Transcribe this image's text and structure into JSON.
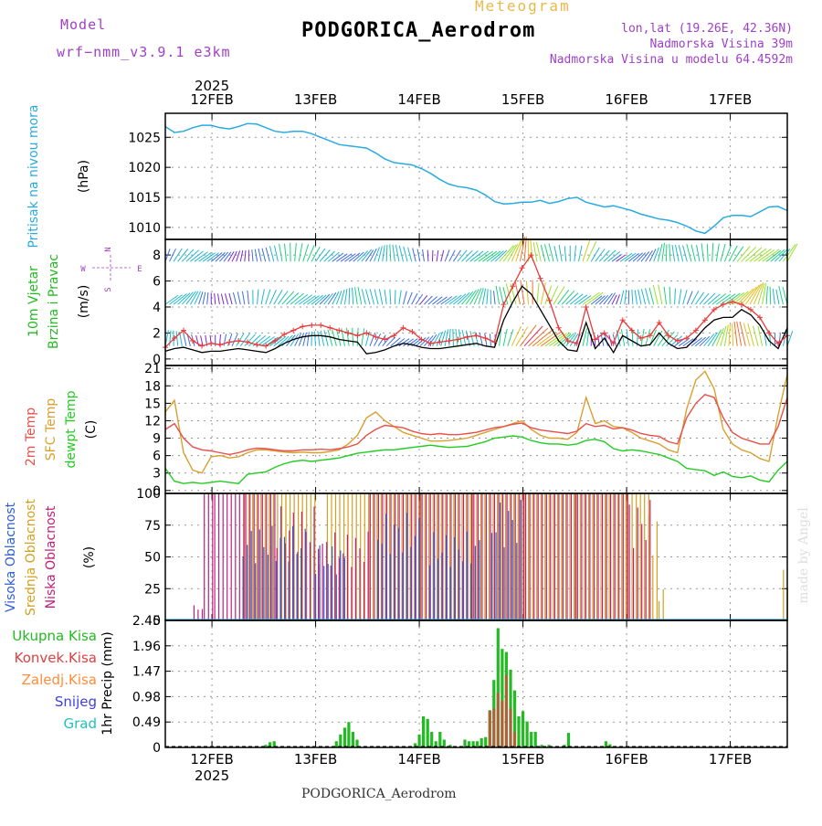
{
  "header": {
    "model_label": "Model",
    "model_name": "wrf−nmm_v3.9.1  e3km",
    "title": "PODGORICA_Aerodrom",
    "subtitle": "Meteogram",
    "lonlat": "lon,lat (19.26E, 42.36N)",
    "elevation": "Nadmorska Visina 39m",
    "model_elevation": "Nadmorska Visina u modelu 64.4592m"
  },
  "footer": {
    "station": "PODGORICA_Aerodrom",
    "watermark": "made by Angel"
  },
  "colors": {
    "pressure": "#29abe2",
    "gust": "#e83a3a",
    "wind_speed": "#000000",
    "temp2m": "#e8504a",
    "sfc_temp": "#d9a030",
    "dewpt": "#22cc22",
    "high_cloud": "#2f5fd0",
    "mid_cloud": "#d4a020",
    "low_cloud": "#c0207a",
    "total_precip": "#22bb22",
    "conv_precip": "#e04040",
    "frozen_precip": "#ff8c3a",
    "snow": "#4040dd",
    "graupel": "#20c0c0",
    "grid": "#999999"
  },
  "chart_data": {
    "type": "meteogram",
    "time_axis": {
      "year": "2025",
      "date_labels": [
        "12FEB",
        "13FEB",
        "14FEB",
        "15FEB",
        "16FEB",
        "17FEB"
      ],
      "start_day": 11.55,
      "end_day": 17.55
    },
    "panels": [
      {
        "id": "pressure",
        "type": "line",
        "ylabel": [
          "Pritisak na nivou mora",
          "(hPa)"
        ],
        "ylim": [
          1008,
          1029
        ],
        "yticks": [
          1010,
          1015,
          1020,
          1025
        ],
        "series": [
          {
            "name": "MSLP",
            "values": [
              1026.8,
              1025.8,
              1026.0,
              1026.6,
              1027.0,
              1027.0,
              1026.6,
              1026.4,
              1026.8,
              1027.3,
              1027.2,
              1026.6,
              1026.0,
              1025.8,
              1026.0,
              1026.0,
              1025.6,
              1025.0,
              1024.4,
              1023.8,
              1023.6,
              1023.4,
              1023.2,
              1022.4,
              1021.4,
              1020.8,
              1020.6,
              1020.4,
              1019.8,
              1019.0,
              1018.0,
              1017.2,
              1016.8,
              1016.6,
              1016.2,
              1015.4,
              1014.3,
              1013.9,
              1014.0,
              1014.2,
              1014.2,
              1014.5,
              1014.0,
              1014.3,
              1014.8,
              1015.0,
              1014.2,
              1013.8,
              1013.4,
              1013.6,
              1013.2,
              1012.8,
              1012.2,
              1011.8,
              1011.4,
              1011.2,
              1010.8,
              1010.2,
              1009.4,
              1009.0,
              1010.2,
              1011.6,
              1012.0,
              1012.0,
              1011.8,
              1012.6,
              1013.4,
              1013.5,
              1012.8
            ]
          }
        ]
      },
      {
        "id": "wind",
        "type": "line+barbs",
        "ylabel": [
          "10m Vjetar",
          "Brzina i Pravac",
          "(m/s)"
        ],
        "compass": {
          "n": "N",
          "s": "S",
          "w": "W",
          "e": "E"
        },
        "ylim": [
          -0.5,
          9.2
        ],
        "yticks": [
          0,
          2,
          4,
          6,
          8
        ],
        "barb_levels": [
          7.5,
          4.2,
          1.0
        ],
        "series": [
          {
            "name": "gust",
            "values": [
              0.9,
              1.6,
              2.2,
              1.4,
              1.0,
              1.2,
              1.1,
              1.3,
              1.4,
              1.3,
              1.1,
              1.0,
              1.4,
              1.9,
              2.2,
              2.5,
              2.6,
              2.6,
              2.4,
              2.2,
              2.0,
              1.8,
              2.0,
              1.7,
              1.5,
              1.8,
              2.4,
              2.1,
              1.5,
              1.2,
              1.3,
              1.4,
              1.5,
              1.7,
              1.8,
              1.6,
              1.3,
              4.2,
              5.6,
              7.0,
              8.0,
              6.2,
              4.5,
              2.4,
              1.4,
              1.2,
              4.0,
              1.5,
              2.0,
              1.2,
              3.0,
              2.2,
              1.6,
              1.8,
              2.8,
              1.8,
              1.4,
              1.6,
              2.2,
              3.0,
              3.8,
              4.2,
              4.4,
              4.2,
              3.8,
              3.2,
              2.0,
              1.2,
              1.8
            ]
          },
          {
            "name": "speed",
            "values": [
              0.6,
              0.8,
              0.9,
              0.7,
              0.5,
              0.6,
              0.6,
              0.7,
              0.8,
              0.7,
              0.6,
              0.5,
              0.8,
              1.2,
              1.5,
              1.7,
              1.8,
              1.8,
              1.7,
              1.5,
              1.4,
              1.3,
              0.4,
              0.5,
              0.7,
              1.0,
              1.2,
              1.1,
              0.9,
              0.8,
              0.8,
              0.9,
              1.0,
              1.1,
              1.2,
              1.0,
              0.9,
              3.0,
              4.4,
              5.6,
              5.0,
              3.8,
              2.6,
              1.4,
              0.7,
              0.6,
              2.8,
              0.8,
              1.6,
              0.5,
              1.8,
              1.4,
              1.0,
              1.1,
              2.0,
              1.2,
              0.8,
              0.9,
              1.6,
              2.4,
              3.0,
              3.2,
              3.2,
              3.8,
              3.4,
              2.6,
              1.4,
              0.8,
              2.4
            ]
          }
        ]
      },
      {
        "id": "temperature",
        "type": "line",
        "ylabel": [
          "2m Temp",
          "SFC Temp",
          "dewpt Temp",
          "(C)"
        ],
        "ylim": [
          -0.5,
          21.5
        ],
        "yticks": [
          0,
          3,
          6,
          9,
          12,
          15,
          18,
          21
        ],
        "series": [
          {
            "name": "2m Temp",
            "values": [
              10.5,
              11.5,
              9.0,
              7.5,
              7.0,
              6.8,
              6.5,
              6.2,
              6.5,
              7.0,
              7.3,
              7.2,
              7.0,
              6.8,
              6.8,
              7.0,
              7.0,
              7.1,
              7.0,
              7.2,
              7.5,
              8.0,
              9.5,
              10.5,
              11.2,
              11.0,
              10.8,
              10.2,
              9.8,
              9.6,
              9.8,
              9.6,
              9.6,
              9.8,
              10.0,
              10.4,
              10.8,
              11.0,
              11.4,
              11.6,
              10.8,
              10.4,
              10.2,
              10.0,
              9.8,
              10.2,
              11.5,
              11.0,
              11.2,
              10.6,
              10.8,
              10.4,
              9.8,
              9.5,
              9.3,
              8.4,
              8.0,
              12.5,
              15.0,
              16.5,
              16.0,
              12.5,
              10.0,
              9.0,
              8.5,
              8.0,
              8.0,
              11.0,
              16.0
            ]
          },
          {
            "name": "SFC Temp",
            "values": [
              13.5,
              15.5,
              6.5,
              3.5,
              3.0,
              5.8,
              6.0,
              5.6,
              5.8,
              6.5,
              7.0,
              7.0,
              6.8,
              6.6,
              6.5,
              6.6,
              6.5,
              6.5,
              6.7,
              7.0,
              8.0,
              9.5,
              12.5,
              13.5,
              12.0,
              11.0,
              10.0,
              9.5,
              9.0,
              8.5,
              8.5,
              8.6,
              8.8,
              9.0,
              9.5,
              10.0,
              10.5,
              11.0,
              11.5,
              12.0,
              10.5,
              9.5,
              9.0,
              9.0,
              8.8,
              10.0,
              16.0,
              11.5,
              12.0,
              11.0,
              10.8,
              10.0,
              9.0,
              8.5,
              8.0,
              7.0,
              6.5,
              14.0,
              19.0,
              20.5,
              17.5,
              10.5,
              8.0,
              7.0,
              6.5,
              5.5,
              5.0,
              13.0,
              20.0
            ]
          },
          {
            "name": "dewpt Temp",
            "values": [
              3.8,
              1.6,
              1.2,
              1.4,
              1.2,
              1.4,
              1.6,
              1.4,
              1.2,
              2.8,
              3.0,
              3.2,
              4.0,
              4.6,
              5.0,
              5.2,
              5.0,
              5.2,
              5.4,
              5.6,
              6.0,
              6.4,
              6.6,
              6.8,
              7.0,
              7.0,
              7.2,
              7.4,
              7.6,
              7.8,
              7.6,
              7.4,
              7.5,
              7.6,
              8.0,
              8.4,
              9.0,
              9.2,
              9.4,
              9.2,
              8.6,
              8.2,
              8.0,
              8.0,
              7.8,
              8.0,
              8.6,
              8.8,
              8.4,
              7.2,
              6.8,
              7.0,
              6.8,
              6.5,
              6.2,
              5.6,
              5.0,
              3.8,
              3.6,
              3.4,
              2.6,
              3.2,
              2.4,
              2.2,
              2.5,
              1.8,
              1.5,
              3.5,
              5.0
            ]
          }
        ]
      },
      {
        "id": "clouds",
        "type": "bar",
        "ylabel": [
          "Visoka Oblacnost",
          "Srednja Oblacnost",
          "Niska Oblacnost",
          "(%)"
        ],
        "ylim": [
          0,
          100
        ],
        "yticks": [
          0,
          25,
          50,
          75,
          100
        ],
        "series": [
          {
            "name": "Visoka Oblacnost",
            "segments": [
              [
                12.3,
                12.9,
                75
              ],
              [
                13.0,
                13.3,
                60
              ],
              [
                13.6,
                14.0,
                85
              ],
              [
                14.1,
                14.6,
                70
              ],
              [
                14.7,
                15.0,
                95
              ]
            ]
          },
          {
            "name": "Srednja Oblacnost",
            "segments": [
              [
                12.3,
                12.7,
                100
              ],
              [
                12.7,
                13.0,
                100
              ],
              [
                13.1,
                13.5,
                100
              ],
              [
                13.5,
                14.0,
                100
              ],
              [
                14.0,
                14.5,
                100
              ],
              [
                14.5,
                15.0,
                100
              ],
              [
                15.0,
                15.5,
                100
              ],
              [
                15.5,
                16.0,
                100
              ],
              [
                16.0,
                16.2,
                100
              ],
              [
                16.2,
                16.3,
                85
              ],
              [
                16.3,
                16.35,
                25
              ],
              [
                17.5,
                17.55,
                40
              ]
            ]
          },
          {
            "name": "Niska Oblacnost",
            "segments": [
              [
                11.8,
                11.9,
                12
              ],
              [
                11.9,
                12.0,
                100
              ],
              [
                12.0,
                12.3,
                100
              ],
              [
                12.3,
                12.6,
                100
              ],
              [
                12.6,
                13.0,
                90
              ],
              [
                13.0,
                13.5,
                70
              ],
              [
                13.5,
                14.0,
                100
              ],
              [
                14.0,
                14.5,
                100
              ],
              [
                14.5,
                15.0,
                100
              ],
              [
                15.0,
                15.5,
                100
              ],
              [
                15.5,
                16.0,
                100
              ],
              [
                16.0,
                16.2,
                95
              ]
            ]
          }
        ]
      },
      {
        "id": "precip",
        "type": "bar",
        "ylabel": [
          "1hr Precip (mm)"
        ],
        "legend": [
          "Ukupna  Kisa",
          "Konvek.Kisa",
          "Zaledj.Kisa",
          "Snijeg",
          "Grad"
        ],
        "ylim": [
          0,
          2.45
        ],
        "yticks": [
          0,
          0.49,
          0.98,
          1.47,
          1.96,
          2.45
        ],
        "series": [
          {
            "name": "total",
            "bars": [
              [
                12.52,
                0.05
              ],
              [
                12.56,
                0.1
              ],
              [
                12.6,
                0.12
              ],
              [
                13.2,
                0.12
              ],
              [
                13.24,
                0.25
              ],
              [
                13.28,
                0.38
              ],
              [
                13.32,
                0.49
              ],
              [
                13.36,
                0.3
              ],
              [
                13.4,
                0.15
              ],
              [
                13.96,
                0.08
              ],
              [
                14.0,
                0.25
              ],
              [
                14.04,
                0.6
              ],
              [
                14.08,
                0.55
              ],
              [
                14.12,
                0.3
              ],
              [
                14.16,
                0.12
              ],
              [
                14.2,
                0.3
              ],
              [
                14.24,
                0.15
              ],
              [
                14.3,
                0.05
              ],
              [
                14.44,
                0.15
              ],
              [
                14.48,
                0.12
              ],
              [
                14.52,
                0.12
              ],
              [
                14.56,
                0.12
              ],
              [
                14.6,
                0.18
              ],
              [
                14.64,
                0.2
              ],
              [
                14.68,
                0.72
              ],
              [
                14.72,
                1.3
              ],
              [
                14.76,
                2.3
              ],
              [
                14.8,
                1.9
              ],
              [
                14.84,
                1.84
              ],
              [
                14.88,
                1.5
              ],
              [
                14.92,
                1.1
              ],
              [
                14.96,
                0.6
              ],
              [
                15.0,
                0.7
              ],
              [
                15.04,
                0.5
              ],
              [
                15.08,
                0.3
              ],
              [
                15.12,
                0.3
              ],
              [
                15.18,
                0.05
              ],
              [
                15.25,
                0.05
              ],
              [
                15.4,
                0.05
              ],
              [
                15.44,
                0.28
              ],
              [
                15.8,
                0.12
              ],
              [
                15.84,
                0.06
              ]
            ]
          },
          {
            "name": "convective",
            "bars": [
              [
                14.68,
                0.7
              ],
              [
                14.72,
                0.75
              ],
              [
                14.76,
                1.05
              ],
              [
                14.8,
                0.9
              ],
              [
                14.84,
                1.4
              ],
              [
                14.88,
                0.75
              ],
              [
                14.92,
                0.3
              ]
            ]
          }
        ]
      }
    ]
  }
}
